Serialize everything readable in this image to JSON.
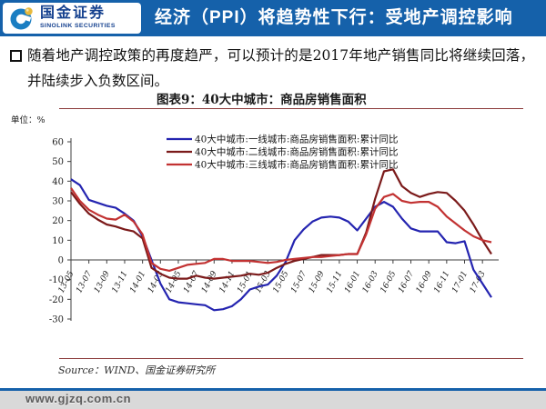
{
  "header": {
    "logo": {
      "cn": "国金证券",
      "en": "SINOLINK SECURITIES"
    },
    "title": "经济（PPI）将趋势性下行：受地产调控影响"
  },
  "body": {
    "bullet_text": "随着地产调控政策的再度趋严，可以预计的是2017年地产销售同比将继续回落，并陆续步入负数区间。"
  },
  "chart": {
    "title": "图表9：40大中城市：商品房销售面积",
    "unit_label": "单位：%",
    "source": "Source：WIND、国金证券研究所"
  },
  "footer": {
    "url": "www.gjzq.com.cn"
  },
  "colors": {
    "header_blue": "#1561aa",
    "rule_red": "#8b3a3a",
    "axis": "#3f3f3f",
    "tier1_blue": "#2424b0",
    "tier2_darkred": "#7b1a1a",
    "tier3_red": "#c23232"
  },
  "chart_data": {
    "type": "line",
    "title": "图表9：40大中城市：商品房销售面积",
    "xlabel": "",
    "ylabel": "单位：%",
    "ylim": [
      -30,
      60
    ],
    "ytick_step": 10,
    "grid": false,
    "legend_position": "top-inside",
    "axis_color": "#3f3f3f",
    "x": [
      "13-05",
      "13-06",
      "13-07",
      "13-08",
      "13-09",
      "13-10",
      "13-11",
      "13-12",
      "14-01",
      "14-02",
      "14-03",
      "14-04",
      "14-05",
      "14-06",
      "14-07",
      "14-08",
      "14-09",
      "14-10",
      "14-11",
      "14-12",
      "15-01",
      "15-02",
      "15-03",
      "15-04",
      "15-05",
      "15-06",
      "15-07",
      "15-08",
      "15-09",
      "15-10",
      "15-11",
      "15-12",
      "16-01",
      "16-02",
      "16-03",
      "16-04",
      "16-05",
      "16-06",
      "16-07",
      "16-08",
      "16-09",
      "16-10",
      "16-11",
      "16-12",
      "17-01",
      "17-02",
      "17-03",
      "17-04"
    ],
    "xtick_labels": [
      "13-05",
      "13-07",
      "13-09",
      "13-11",
      "14-01",
      "14-03",
      "14-05",
      "14-07",
      "14-09",
      "14-11",
      "15-01",
      "15-03",
      "15-05",
      "15-07",
      "15-09",
      "15-11",
      "16-01",
      "16-03",
      "16-05",
      "16-07",
      "16-09",
      "16-11",
      "17-01",
      "17-03"
    ],
    "series": [
      {
        "name": "40大中城市:一线城市:商品房销售面积:累计同比",
        "color": "#2424b0",
        "values": [
          41,
          38,
          30.5,
          29,
          27.5,
          26.5,
          23.5,
          20,
          12,
          0,
          -12,
          -20,
          -21.5,
          -22,
          -22.5,
          -23,
          -25.5,
          -25,
          -23.5,
          -20,
          -15,
          -13.5,
          -12.5,
          -8,
          -1,
          10,
          15.5,
          19.5,
          21.5,
          22,
          21.5,
          19.5,
          15,
          21,
          27,
          29.5,
          27,
          21,
          16,
          14.5,
          14.5,
          14.5,
          9,
          8.5,
          9.5,
          -5,
          -12,
          -19
        ]
      },
      {
        "name": "40大中城市:二线城市:商品房销售面积:累计同比",
        "color": "#7b1a1a",
        "values": [
          34.5,
          28.5,
          23.5,
          20.5,
          18,
          17,
          15.5,
          14.5,
          11,
          -4,
          -7,
          -9,
          -9.5,
          -9.5,
          -8,
          -9,
          -9.5,
          -9,
          -8.5,
          -8,
          -7,
          -7.5,
          -6.5,
          -4,
          -2,
          -0.5,
          0.5,
          1.5,
          2.5,
          2.5,
          2.5,
          3,
          3,
          14,
          31,
          45,
          46,
          37.5,
          34,
          32,
          33.5,
          34.5,
          34,
          30,
          25,
          18,
          10,
          3
        ]
      },
      {
        "name": "40大中城市:三线城市:商品房销售面积:累计同比",
        "color": "#c23232",
        "values": [
          36.5,
          30,
          25.5,
          23,
          21,
          20.5,
          23,
          19.5,
          13,
          -1.5,
          -4.5,
          -5.5,
          -4,
          -2.5,
          -2,
          -1.5,
          0.5,
          0.5,
          -0.5,
          -0.5,
          -0.5,
          -1,
          -1.5,
          -1,
          0,
          0.5,
          1,
          1.5,
          1.5,
          2,
          2.5,
          3,
          3,
          13,
          26,
          32,
          33.5,
          30,
          29,
          29.5,
          29.5,
          27,
          22,
          18.5,
          15,
          12,
          10,
          9
        ]
      }
    ]
  }
}
